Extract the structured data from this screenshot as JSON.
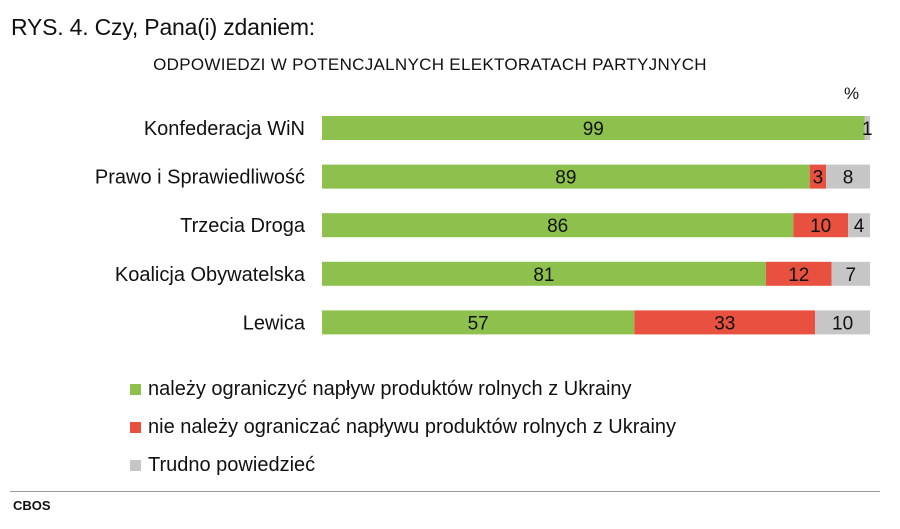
{
  "title": "RYS. 4. Czy, Pana(i) zdaniem:",
  "subtitle": "ODPOWIEDZI W POTENCJALNYCH ELEKTORATACH PARTYJNYCH",
  "unit": "%",
  "source": "CBOS",
  "colors": {
    "limit": "#8dc04c",
    "no_limit": "#e8503f",
    "hard_to_say": "#c6c6c6"
  },
  "legend": [
    {
      "key": "limit",
      "label": "należy ograniczyć napływ produktów rolnych z Ukrainy"
    },
    {
      "key": "no_limit",
      "label": "nie należy ograniczać napływu produktów rolnych z Ukrainy"
    },
    {
      "key": "hard_to_say",
      "label": "Trudno powiedzieć"
    }
  ],
  "chart_data": {
    "type": "bar",
    "orientation": "horizontal",
    "stacked": true,
    "xlim": [
      0,
      100
    ],
    "categories": [
      "Konfederacja WiN",
      "Prawo i Sprawiedliwość",
      "Trzecia Droga",
      "Koalicja Obywatelska",
      "Lewica"
    ],
    "series": [
      {
        "key": "limit",
        "name": "należy ograniczyć napływ produktów rolnych z Ukrainy",
        "values": [
          99,
          89,
          86,
          81,
          57
        ]
      },
      {
        "key": "no_limit",
        "name": "nie należy ograniczać napływu produktów rolnych z Ukrainy",
        "values": [
          0,
          3,
          10,
          12,
          33
        ]
      },
      {
        "key": "hard_to_say",
        "name": "Trudno powiedzieć",
        "values": [
          1,
          8,
          4,
          7,
          10
        ]
      }
    ],
    "grid": false,
    "legend_position": "bottom"
  }
}
